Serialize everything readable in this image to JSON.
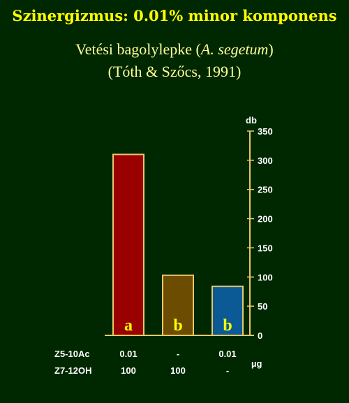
{
  "slide": {
    "title": "Szinergizmus: 0.01% minor komponens",
    "subtitle_prefix": "Vetési bagolylepke (",
    "subtitle_species": "A. segetum",
    "subtitle_suffix": ")",
    "citation": "(Tóth & Szőcs, 1991)"
  },
  "colors": {
    "background": "#002800",
    "title": "#ffff00",
    "subtitle": "#ffff99",
    "axis": "#e8c86a",
    "letters": "#ffff00"
  },
  "chart_data": {
    "type": "bar",
    "ylabel": "db",
    "ylim": [
      0,
      350
    ],
    "yticks": [
      0,
      50,
      100,
      150,
      200,
      250,
      300,
      350
    ],
    "axis_side": "right",
    "bars": [
      {
        "value": 310,
        "color": "#990000",
        "letter": "a"
      },
      {
        "value": 103,
        "color": "#6b4c00",
        "letter": "b"
      },
      {
        "value": 84,
        "color": "#0b5a96",
        "letter": "b"
      }
    ],
    "treatment_rows": [
      {
        "label": "Z5-10Ac",
        "values": [
          "0.01",
          "-",
          "0.01"
        ]
      },
      {
        "label": "Z7-12OH",
        "values": [
          "100",
          "100",
          "-"
        ]
      }
    ],
    "unit": "µg"
  }
}
